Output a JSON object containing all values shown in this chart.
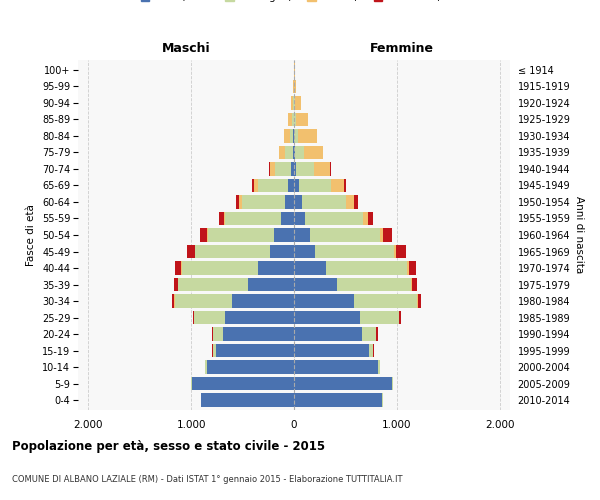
{
  "age_groups": [
    "0-4",
    "5-9",
    "10-14",
    "15-19",
    "20-24",
    "25-29",
    "30-34",
    "35-39",
    "40-44",
    "45-49",
    "50-54",
    "55-59",
    "60-64",
    "65-69",
    "70-74",
    "75-79",
    "80-84",
    "85-89",
    "90-94",
    "95-99",
    "100+"
  ],
  "year_labels": [
    "2010-2014",
    "2005-2009",
    "2000-2004",
    "1995-1999",
    "1990-1994",
    "1985-1989",
    "1980-1984",
    "1975-1979",
    "1970-1974",
    "1965-1969",
    "1960-1964",
    "1955-1959",
    "1950-1954",
    "1945-1949",
    "1940-1944",
    "1935-1939",
    "1930-1934",
    "1925-1929",
    "1920-1924",
    "1915-1919",
    "≤ 1914"
  ],
  "colors": {
    "celibi": "#4a72b0",
    "coniugati": "#c6d9a0",
    "vedovi": "#f2c06e",
    "divorziati": "#c0141a"
  },
  "males": {
    "celibi": [
      900,
      990,
      850,
      760,
      690,
      670,
      600,
      450,
      350,
      230,
      190,
      130,
      90,
      60,
      30,
      10,
      5,
      2,
      1,
      0,
      0
    ],
    "coniugati": [
      5,
      15,
      20,
      30,
      100,
      300,
      560,
      680,
      740,
      730,
      650,
      540,
      420,
      290,
      150,
      80,
      35,
      15,
      5,
      1,
      0
    ],
    "vedovi": [
      0,
      0,
      0,
      0,
      0,
      0,
      2,
      2,
      5,
      5,
      8,
      10,
      20,
      35,
      50,
      55,
      60,
      45,
      20,
      8,
      1
    ],
    "divorziati": [
      0,
      0,
      0,
      3,
      10,
      15,
      20,
      35,
      65,
      80,
      70,
      45,
      30,
      20,
      10,
      5,
      2,
      1,
      0,
      0,
      0
    ]
  },
  "females": {
    "nubili": [
      860,
      950,
      820,
      730,
      660,
      640,
      580,
      420,
      310,
      200,
      160,
      110,
      75,
      45,
      20,
      8,
      3,
      1,
      0,
      0,
      0
    ],
    "coniugate": [
      5,
      15,
      20,
      40,
      140,
      380,
      620,
      720,
      790,
      770,
      680,
      560,
      430,
      310,
      170,
      90,
      40,
      15,
      5,
      2,
      0
    ],
    "vedove": [
      0,
      0,
      0,
      0,
      2,
      5,
      10,
      10,
      15,
      20,
      30,
      45,
      80,
      130,
      160,
      180,
      180,
      120,
      60,
      20,
      5
    ],
    "divorziate": [
      0,
      0,
      0,
      4,
      12,
      18,
      25,
      45,
      75,
      95,
      80,
      55,
      40,
      25,
      12,
      6,
      3,
      1,
      0,
      0,
      0
    ]
  },
  "xlim": 2100,
  "xticks": [
    -2000,
    -1000,
    0,
    1000,
    2000
  ],
  "xticklabels": [
    "2.000",
    "1.000",
    "0",
    "1.000",
    "2.000"
  ],
  "title": "Popolazione per età, sesso e stato civile - 2015",
  "subtitle": "COMUNE DI ALBANO LAZIALE (RM) - Dati ISTAT 1° gennaio 2015 - Elaborazione TUTTITALIA.IT",
  "ylabel_left": "Fasce di età",
  "ylabel_right": "Anni di nascita",
  "label_maschi": "Maschi",
  "label_femmine": "Femmine",
  "background_color": "#f5f5f5"
}
